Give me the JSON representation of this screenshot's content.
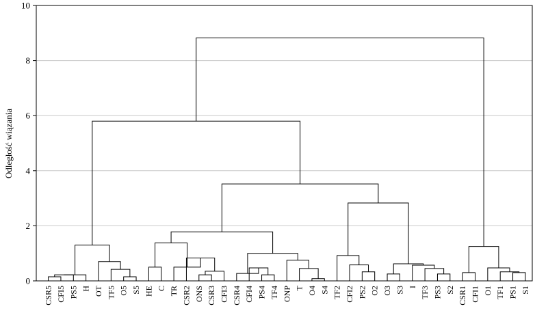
{
  "chart_data": {
    "type": "dendrogram",
    "ylabel": "Odległość wiązania",
    "ylim": [
      0,
      10
    ],
    "yticks": [
      0,
      2,
      4,
      6,
      8,
      10
    ],
    "grid": true,
    "leaves": [
      "CSR5",
      "CFI5",
      "PS5",
      "H",
      "OT",
      "TF5",
      "O5",
      "S5",
      "HE",
      "C",
      "TR",
      "CSR2",
      "ONS",
      "CSR3",
      "CFI3",
      "CSR4",
      "CFI4",
      "PS4",
      "TF4",
      "ONP",
      "T",
      "O4",
      "S4",
      "TF2",
      "CFI2",
      "PS2",
      "O2",
      "O3",
      "S3",
      "I",
      "TF3",
      "PS3",
      "S2",
      "CSR1",
      "CFI1",
      "O1",
      "TF1",
      "PS1",
      "S1"
    ],
    "merges": [
      {
        "id": "m1",
        "a": "CSR5",
        "b": "CFI5",
        "height": 0.15
      },
      {
        "id": "m2",
        "a": "m1",
        "b": "PS5",
        "height": 0.22
      },
      {
        "id": "m3",
        "a": "O5",
        "b": "S5",
        "height": 0.15
      },
      {
        "id": "m4",
        "a": "m3",
        "b": "TF5",
        "height": 0.42
      },
      {
        "id": "m5",
        "a": "OT",
        "b": "m4",
        "height": 0.7
      },
      {
        "id": "m6",
        "a": "m2",
        "b": "H",
        "height": 0.22
      },
      {
        "id": "m7",
        "a": "m6",
        "b": "m5",
        "height": 1.3
      },
      {
        "id": "m8",
        "a": "ONS",
        "b": "CSR3",
        "height": 0.22
      },
      {
        "id": "m9",
        "a": "m8",
        "b": "CFI3",
        "height": 0.35
      },
      {
        "id": "m10",
        "a": "CSR2",
        "b": "m9",
        "height": 0.83
      },
      {
        "id": "m11",
        "a": "TR",
        "b": "m10",
        "height": 0.5
      },
      {
        "id": "m12",
        "a": "HE",
        "b": "C",
        "height": 0.5
      },
      {
        "id": "m13",
        "a": "m12",
        "b": "m11",
        "height": 1.38
      },
      {
        "id": "m14",
        "a": "PS4",
        "b": "TF4",
        "height": 0.22
      },
      {
        "id": "m15",
        "a": "CFI4",
        "b": "m14",
        "height": 0.47
      },
      {
        "id": "m16",
        "a": "CSR4",
        "b": "m15",
        "height": 0.27
      },
      {
        "id": "m17",
        "a": "O4",
        "b": "S4",
        "height": 0.08
      },
      {
        "id": "m18",
        "a": "T",
        "b": "m17",
        "height": 0.45
      },
      {
        "id": "m19",
        "a": "ONP",
        "b": "m18",
        "height": 0.75
      },
      {
        "id": "m20",
        "a": "m16",
        "b": "m19",
        "height": 1.0
      },
      {
        "id": "m21",
        "a": "m13",
        "b": "m20",
        "height": 1.78
      },
      {
        "id": "m22",
        "a": "O2",
        "b": "PS2",
        "height": 0.33
      },
      {
        "id": "m23",
        "a": "CFI2",
        "b": "m22",
        "height": 0.58
      },
      {
        "id": "m24",
        "a": "TF2",
        "b": "m23",
        "height": 0.92
      },
      {
        "id": "m25",
        "a": "PS3",
        "b": "S2",
        "height": 0.25
      },
      {
        "id": "m26",
        "a": "TF3",
        "b": "m25",
        "height": 0.45
      },
      {
        "id": "m27",
        "a": "I",
        "b": "m26",
        "height": 0.57
      },
      {
        "id": "m28",
        "a": "O3",
        "b": "S3",
        "height": 0.25
      },
      {
        "id": "m29",
        "a": "m28",
        "b": "m27",
        "height": 0.62
      },
      {
        "id": "m30",
        "a": "m24",
        "b": "m29",
        "height": 2.83
      },
      {
        "id": "m31",
        "a": "m21",
        "b": "m30",
        "height": 3.52
      },
      {
        "id": "m32",
        "a": "m7",
        "b": "m31",
        "height": 5.8
      },
      {
        "id": "m33",
        "a": "PS1",
        "b": "S1",
        "height": 0.3
      },
      {
        "id": "m34",
        "a": "TF1",
        "b": "m33",
        "height": 0.33
      },
      {
        "id": "m35",
        "a": "O1",
        "b": "m34",
        "height": 0.47
      },
      {
        "id": "m36",
        "a": "CSR1",
        "b": "CFI1",
        "height": 0.3
      },
      {
        "id": "m37",
        "a": "m36",
        "b": "m35",
        "height": 1.25
      },
      {
        "id": "m38",
        "a": "m32",
        "b": "m37",
        "height": 8.82
      }
    ]
  }
}
